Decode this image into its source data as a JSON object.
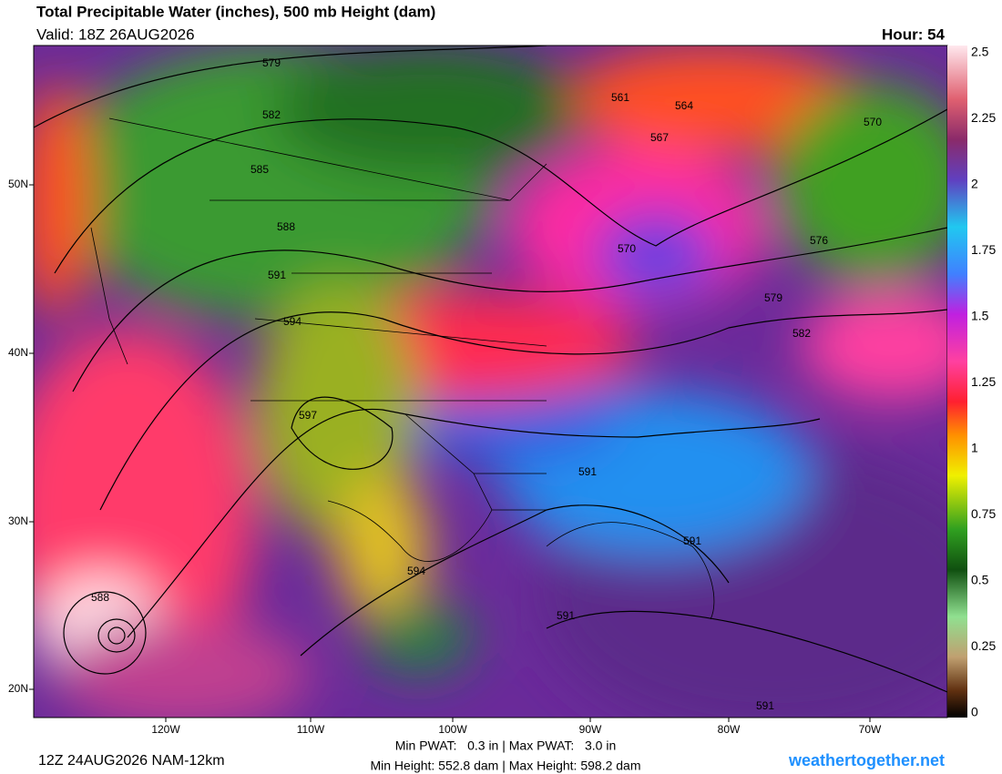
{
  "header": {
    "title": "Total Precipitable Water (inches), 500 mb Height (dam)",
    "valid": "Valid: 18Z 26AUG2026",
    "hour": "Hour: 54"
  },
  "colorbar": {
    "ticks": [
      "2.5",
      "2.25",
      "2",
      "1.75",
      "1.5",
      "1.25",
      "1",
      "0.75",
      "0.5",
      "0.25",
      "0"
    ]
  },
  "map": {
    "lat_labels": [
      "50N",
      "40N",
      "30N",
      "20N"
    ],
    "lon_labels": [
      "120W",
      "110W",
      "100W",
      "90W",
      "80W",
      "70W"
    ],
    "contour_labels": [
      "579",
      "582",
      "585",
      "588",
      "591",
      "594",
      "597",
      "591",
      "594",
      "591",
      "588",
      "561",
      "564",
      "567",
      "570",
      "570",
      "576",
      "579",
      "582",
      "591",
      "591"
    ]
  },
  "footer": {
    "run": "12Z 24AUG2026 NAM-12km",
    "stats": [
      "Min PWAT:   0.3 in | Max PWAT:   3.0 in",
      "Min Height: 552.8 dam | Max Height: 598.2 dam"
    ],
    "site": "weathertogether.net"
  }
}
